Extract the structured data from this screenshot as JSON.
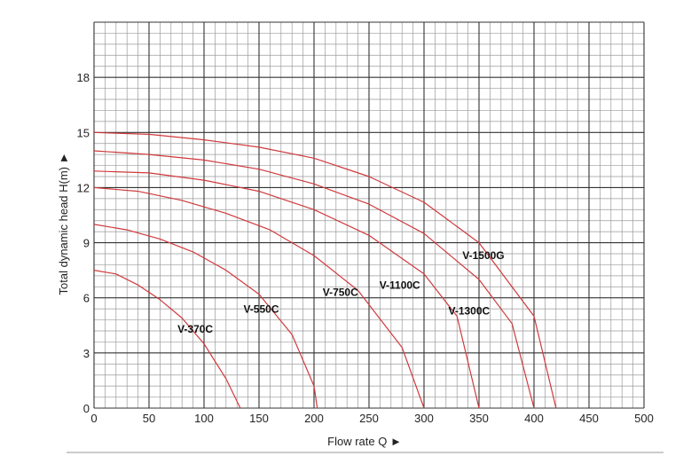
{
  "chart_data": {
    "type": "line",
    "xlabel": "Flow rate Q ►",
    "ylabel": "Total dynamic head H(m) ►",
    "xlim": [
      0,
      500
    ],
    "ylim": [
      0,
      21
    ],
    "x_ticks": [
      0,
      50,
      100,
      150,
      200,
      250,
      300,
      350,
      400,
      450,
      500
    ],
    "y_ticks": [
      0,
      3,
      6,
      9,
      12,
      15,
      18
    ],
    "x_tick_labels": [
      "0",
      "50",
      "100",
      "150",
      "200",
      "250",
      "300",
      "350",
      "400",
      "450",
      "500"
    ],
    "y_tick_labels": [
      "0",
      "3",
      "6",
      "9",
      "12",
      "15",
      "18"
    ],
    "grid": true,
    "curve_color": "#d0393c",
    "major_grid_color": "#333333",
    "minor_grid_color": "#9a9a9a",
    "series": [
      {
        "name": "V-370C",
        "label_at": [
          92,
          4.1
        ],
        "x": [
          0,
          20,
          40,
          60,
          80,
          100,
          120,
          133
        ],
        "y": [
          7.5,
          7.3,
          6.7,
          5.9,
          4.9,
          3.5,
          1.6,
          0
        ]
      },
      {
        "name": "V-550C",
        "label_at": [
          152,
          5.2
        ],
        "x": [
          0,
          30,
          60,
          90,
          120,
          150,
          180,
          200,
          203
        ],
        "y": [
          10,
          9.7,
          9.2,
          8.5,
          7.5,
          6.2,
          4.0,
          1.2,
          0
        ]
      },
      {
        "name": "V-750C",
        "label_at": [
          224,
          6.1
        ],
        "x": [
          0,
          40,
          80,
          120,
          160,
          200,
          240,
          280,
          300
        ],
        "y": [
          12,
          11.8,
          11.3,
          10.6,
          9.7,
          8.3,
          6.4,
          3.3,
          0
        ]
      },
      {
        "name": "V-1100C",
        "label_at": [
          278,
          6.5
        ],
        "x": [
          0,
          50,
          100,
          150,
          200,
          250,
          300,
          330,
          350
        ],
        "y": [
          12.9,
          12.8,
          12.4,
          11.8,
          10.8,
          9.4,
          7.3,
          5.0,
          0
        ]
      },
      {
        "name": "V-1300C",
        "label_at": [
          341,
          5.1
        ],
        "x": [
          0,
          50,
          100,
          150,
          200,
          250,
          300,
          350,
          380,
          400
        ],
        "y": [
          14,
          13.8,
          13.5,
          13.0,
          12.2,
          11.1,
          9.5,
          7.0,
          4.6,
          0
        ]
      },
      {
        "name": "V-1500G",
        "label_at": [
          354,
          8.1
        ],
        "x": [
          0,
          50,
          100,
          150,
          200,
          250,
          300,
          350,
          400,
          420
        ],
        "y": [
          15,
          14.9,
          14.6,
          14.2,
          13.6,
          12.6,
          11.2,
          9.0,
          5.0,
          0
        ]
      }
    ]
  }
}
